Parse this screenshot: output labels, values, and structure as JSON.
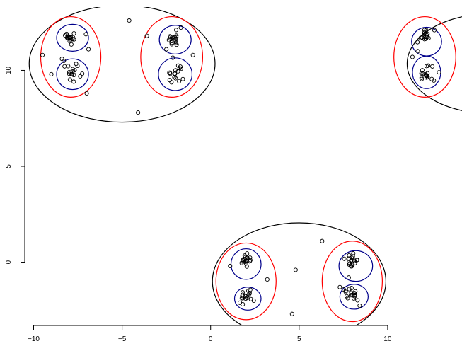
{
  "chart_data": {
    "type": "scatter",
    "title": "",
    "xlabel": "",
    "ylabel": "",
    "xlim": [
      -10.5,
      14.2
    ],
    "ylim": [
      -3.3,
      13.3
    ],
    "xticks": [
      -10,
      -5,
      0,
      5,
      10
    ],
    "yticks": [
      0,
      5,
      10
    ],
    "x_tick_labels": [
      "−10",
      "−5",
      "0",
      "5",
      "10"
    ],
    "y_tick_labels": [
      "0",
      "5",
      "10"
    ],
    "grid": false,
    "axes": "left-bottom",
    "colors": {
      "points": "#000000",
      "level_outer": "#000000",
      "level_mid": "#ff0000",
      "level_inner": "#00008b"
    },
    "clusters": [
      {
        "center": [
          -7.9,
          11.8
        ],
        "spread": 0.22,
        "n": 18
      },
      {
        "center": [
          -7.8,
          9.8
        ],
        "spread": 0.24,
        "n": 18
      },
      {
        "center": [
          -2.1,
          11.7
        ],
        "spread": 0.24,
        "n": 18
      },
      {
        "center": [
          -2.0,
          9.8
        ],
        "spread": 0.26,
        "n": 18
      },
      {
        "center": [
          12.1,
          11.8
        ],
        "spread": 0.22,
        "n": 18
      },
      {
        "center": [
          12.1,
          9.8
        ],
        "spread": 0.22,
        "n": 18
      },
      {
        "center": [
          2.0,
          0.1
        ],
        "spread": 0.2,
        "n": 18
      },
      {
        "center": [
          2.0,
          -1.8
        ],
        "spread": 0.24,
        "n": 18
      },
      {
        "center": [
          8.0,
          0.1
        ],
        "spread": 0.2,
        "n": 18
      },
      {
        "center": [
          8.0,
          -1.7
        ],
        "spread": 0.24,
        "n": 18
      }
    ],
    "outliers": [
      [
        -4.6,
        12.6
      ],
      [
        -3.6,
        11.8
      ],
      [
        -4.1,
        7.8
      ],
      [
        -9.5,
        10.8
      ],
      [
        -9.0,
        9.8
      ],
      [
        -7.0,
        8.8
      ],
      [
        -1.0,
        10.8
      ],
      [
        -2.5,
        11.1
      ],
      [
        -6.9,
        11.1
      ],
      [
        -8.4,
        10.6
      ],
      [
        6.3,
        1.1
      ],
      [
        4.8,
        -0.4
      ],
      [
        4.6,
        -2.7
      ],
      [
        1.1,
        -0.2
      ],
      [
        3.2,
        -0.9
      ],
      [
        7.3,
        -1.3
      ],
      [
        7.8,
        -0.8
      ],
      [
        12.9,
        9.9
      ],
      [
        11.4,
        10.7
      ],
      [
        11.7,
        11.0
      ]
    ],
    "contours": {
      "outer": [
        {
          "center": [
            -5.0,
            10.35
          ],
          "rx": 5.25,
          "ry": 3.05
        },
        {
          "center": [
            15.8,
            10.35
          ],
          "rx": 4.7,
          "ry": 2.6
        },
        {
          "center": [
            5.0,
            -1.0
          ],
          "rx": 4.9,
          "ry": 3.05
        }
      ],
      "mid": [
        {
          "center": [
            -7.9,
            10.7
          ],
          "rx": 1.7,
          "ry": 2.1
        },
        {
          "center": [
            -2.2,
            10.7
          ],
          "rx": 1.75,
          "ry": 2.1
        },
        {
          "center": [
            12.1,
            10.7
          ],
          "rx": 1.75,
          "ry": 2.1
        },
        {
          "center": [
            2.0,
            -1.0
          ],
          "rx": 1.7,
          "ry": 2.0
        },
        {
          "center": [
            8.0,
            -1.0
          ],
          "rx": 1.7,
          "ry": 2.1
        }
      ],
      "inner": [
        {
          "center": [
            -7.8,
            11.7
          ],
          "rx": 0.9,
          "ry": 0.7
        },
        {
          "center": [
            -7.8,
            9.8
          ],
          "rx": 0.9,
          "ry": 0.8
        },
        {
          "center": [
            -2.0,
            11.6
          ],
          "rx": 0.9,
          "ry": 0.75
        },
        {
          "center": [
            -2.0,
            9.8
          ],
          "rx": 0.95,
          "ry": 0.85
        },
        {
          "center": [
            12.2,
            11.5
          ],
          "rx": 0.85,
          "ry": 0.75
        },
        {
          "center": [
            12.2,
            9.9
          ],
          "rx": 0.8,
          "ry": 0.85
        },
        {
          "center": [
            2.0,
            -0.1
          ],
          "rx": 0.85,
          "ry": 0.8
        },
        {
          "center": [
            2.1,
            -1.9
          ],
          "rx": 0.75,
          "ry": 0.6
        },
        {
          "center": [
            8.2,
            -0.2
          ],
          "rx": 0.95,
          "ry": 0.8
        },
        {
          "center": [
            8.1,
            -1.8
          ],
          "rx": 0.8,
          "ry": 0.65
        }
      ]
    }
  }
}
